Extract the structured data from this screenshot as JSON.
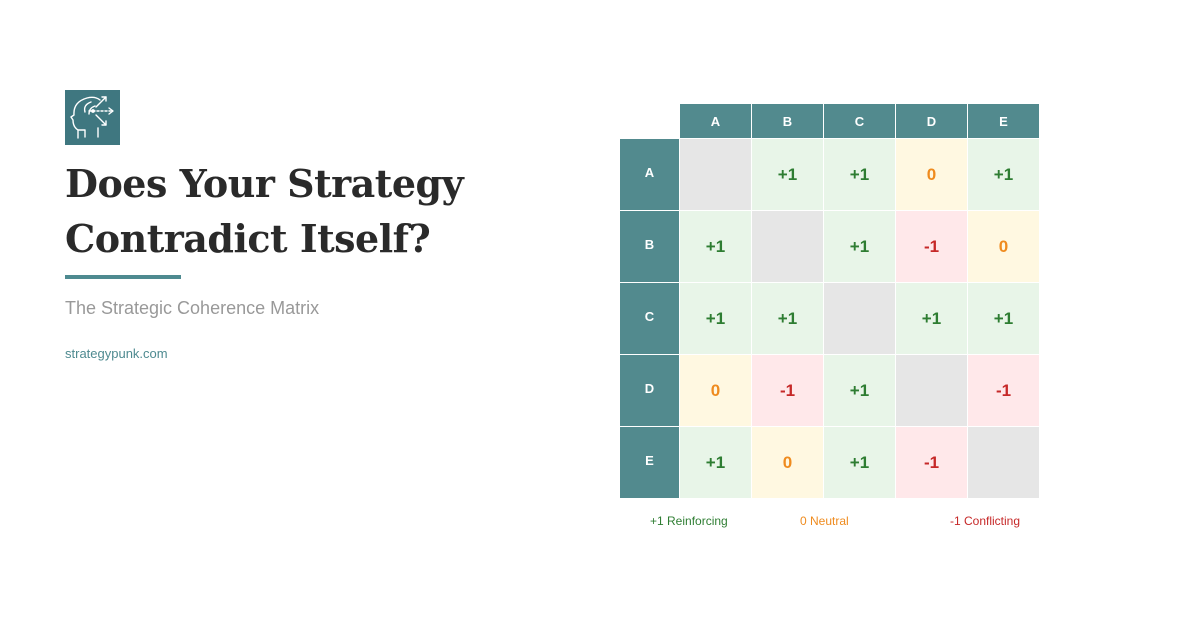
{
  "logo": {
    "icon": "head-strategy-arrows-icon",
    "bg_color": "#3f7780"
  },
  "title": {
    "line1": "Does Your Strategy",
    "line2": "Contradict Itself?"
  },
  "subtitle": "The Strategic Coherence Matrix",
  "site": "strategypunk.com",
  "matrix": {
    "columns": [
      "A",
      "B",
      "C",
      "D",
      "E"
    ],
    "rows": [
      {
        "label": "A",
        "cells": [
          "",
          "+1",
          "+1",
          "0",
          "+1"
        ]
      },
      {
        "label": "B",
        "cells": [
          "+1",
          "",
          "+1",
          "-1",
          "0"
        ]
      },
      {
        "label": "C",
        "cells": [
          "+1",
          "+1",
          "",
          "+1",
          "+1"
        ]
      },
      {
        "label": "D",
        "cells": [
          "0",
          "-1",
          "+1",
          "",
          "-1"
        ]
      },
      {
        "label": "E",
        "cells": [
          "+1",
          "0",
          "+1",
          "-1",
          ""
        ]
      }
    ],
    "colors": {
      "header": "#528a8e",
      "positive": "#2e7d32",
      "neutral": "#ef8b1e",
      "negative": "#c62828",
      "diagonal": "#e6e6e6"
    }
  },
  "legend": {
    "positive": "+1 Reinforcing",
    "neutral": "0 Neutral",
    "negative": "-1 Conflicting"
  }
}
